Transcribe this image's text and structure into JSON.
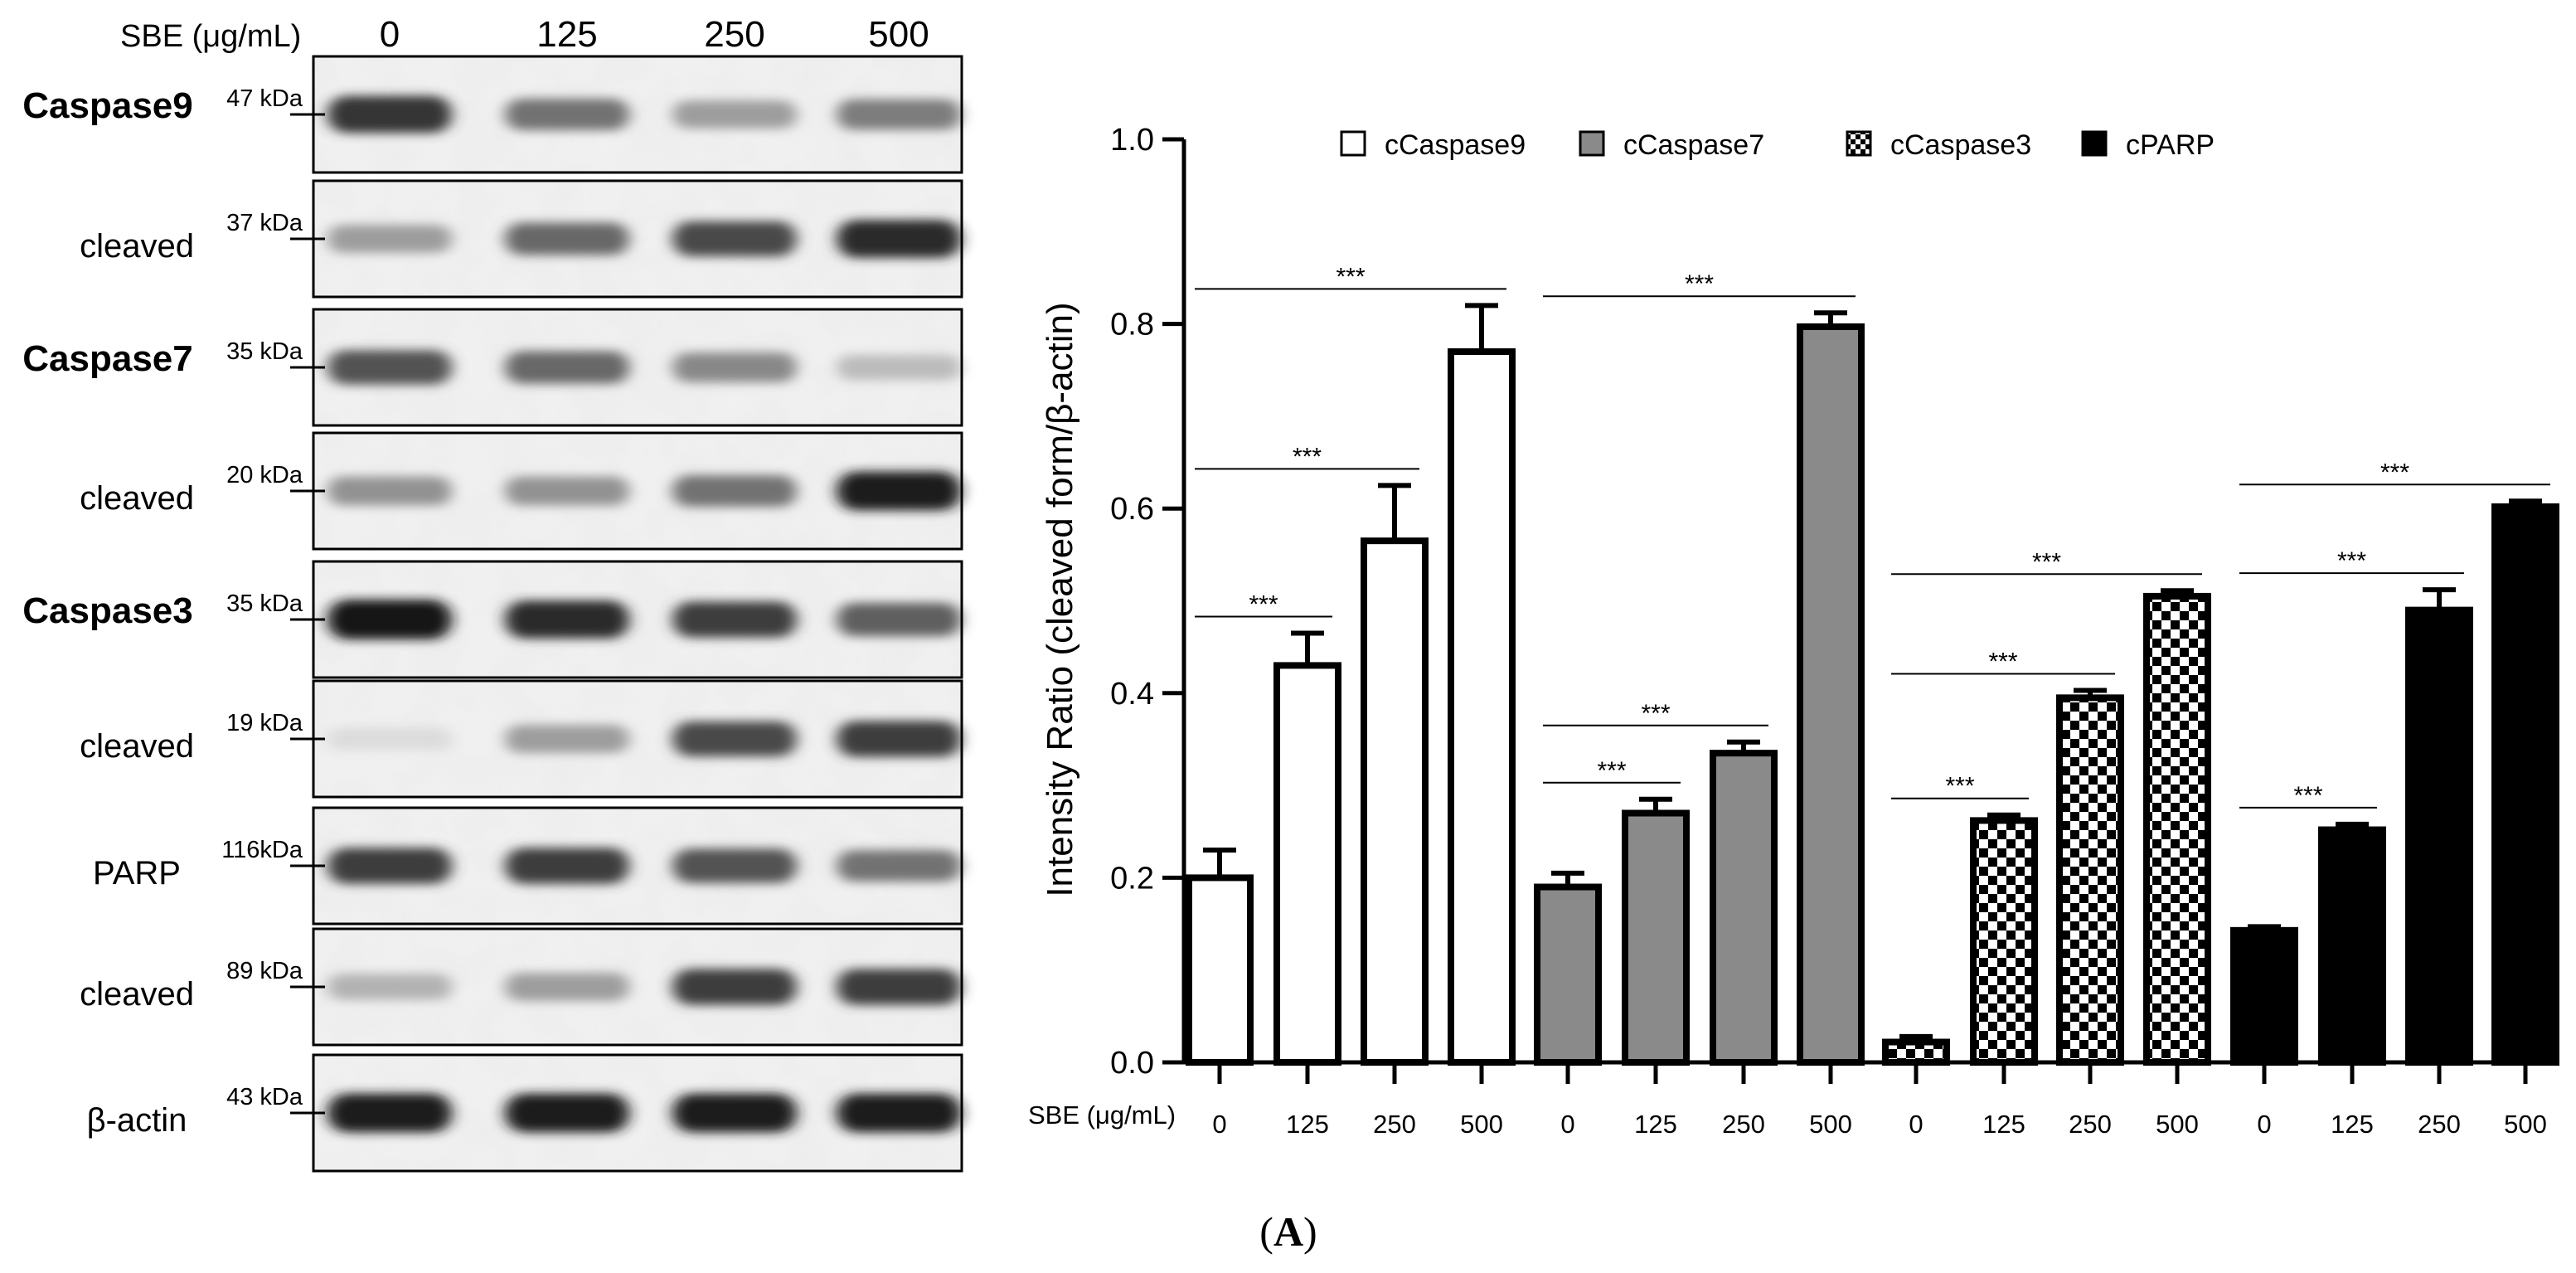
{
  "blot": {
    "header_label": "SBE (μg/mL)",
    "doses": [
      "0",
      "125",
      "250",
      "500"
    ],
    "rows": [
      {
        "label": "Caspase9",
        "kda": "47 kDa",
        "bold": true,
        "intensities": [
          0.85,
          0.55,
          0.35,
          0.5
        ]
      },
      {
        "label": "cleaved",
        "kda": "37 kDa",
        "bold": false,
        "intensities": [
          0.35,
          0.6,
          0.75,
          0.9
        ]
      },
      {
        "label": "Caspase7",
        "kda": "35 kDa",
        "bold": true,
        "intensities": [
          0.7,
          0.6,
          0.45,
          0.2
        ]
      },
      {
        "label": "cleaved",
        "kda": "20 kDa",
        "bold": false,
        "intensities": [
          0.4,
          0.4,
          0.55,
          0.95
        ]
      },
      {
        "label": "Caspase3",
        "kda": "35 kDa",
        "bold": true,
        "intensities": [
          1.0,
          0.9,
          0.8,
          0.65
        ]
      },
      {
        "label": "cleaved",
        "kda": "19 kDa",
        "bold": false,
        "intensities": [
          0.05,
          0.35,
          0.75,
          0.8
        ]
      },
      {
        "label": "PARP",
        "kda": "116kDa",
        "bold": false,
        "intensities": [
          0.8,
          0.8,
          0.7,
          0.55
        ]
      },
      {
        "label": "cleaved",
        "kda": "89 kDa",
        "bold": false,
        "intensities": [
          0.25,
          0.35,
          0.8,
          0.8
        ]
      },
      {
        "label": "β-actin",
        "kda": "43 kDa",
        "bold": false,
        "intensities": [
          0.95,
          0.95,
          0.95,
          0.95
        ]
      }
    ]
  },
  "chart_data": {
    "type": "bar",
    "ylabel": "Intensity Ratio (cleaved form/β-actin)",
    "xlabel": "SBE (μg/mL)",
    "ylim": [
      0.0,
      1.0
    ],
    "yticks": [
      "0.0",
      "0.2",
      "0.4",
      "0.6",
      "0.8",
      "1.0"
    ],
    "categories": [
      "0",
      "125",
      "250",
      "500"
    ],
    "legend_position": "top",
    "series": [
      {
        "name": "cCaspase9",
        "pattern": "white",
        "values": [
          0.2,
          0.43,
          0.565,
          0.77
        ],
        "errors": [
          0.03,
          0.035,
          0.06,
          0.05
        ],
        "significance": [
          {
            "from": 0,
            "to": 1,
            "label": "***"
          },
          {
            "from": 0,
            "to": 2,
            "label": "***"
          },
          {
            "from": 0,
            "to": 3,
            "label": "***"
          }
        ]
      },
      {
        "name": "cCaspase7",
        "pattern": "gray",
        "values": [
          0.19,
          0.27,
          0.335,
          0.797
        ],
        "errors": [
          0.015,
          0.015,
          0.012,
          0.015
        ],
        "significance": [
          {
            "from": 0,
            "to": 1,
            "label": "***"
          },
          {
            "from": 0,
            "to": 2,
            "label": "***"
          },
          {
            "from": 0,
            "to": 3,
            "label": "***"
          }
        ]
      },
      {
        "name": "cCaspase3",
        "pattern": "checker",
        "values": [
          0.022,
          0.262,
          0.395,
          0.505
        ],
        "errors": [
          0.006,
          0.006,
          0.008,
          0.006
        ],
        "significance": [
          {
            "from": 0,
            "to": 1,
            "label": "***"
          },
          {
            "from": 0,
            "to": 2,
            "label": "***"
          },
          {
            "from": 0,
            "to": 3,
            "label": "***"
          }
        ]
      },
      {
        "name": "cPARP",
        "pattern": "black",
        "values": [
          0.143,
          0.252,
          0.49,
          0.602
        ],
        "errors": [
          0.004,
          0.006,
          0.022,
          0.006
        ],
        "significance": [
          {
            "from": 0,
            "to": 1,
            "label": "***"
          },
          {
            "from": 0,
            "to": 2,
            "label": "***"
          },
          {
            "from": 0,
            "to": 3,
            "label": "***"
          }
        ]
      }
    ]
  },
  "caption": {
    "open": "(",
    "letter": "A",
    "close": ")"
  }
}
